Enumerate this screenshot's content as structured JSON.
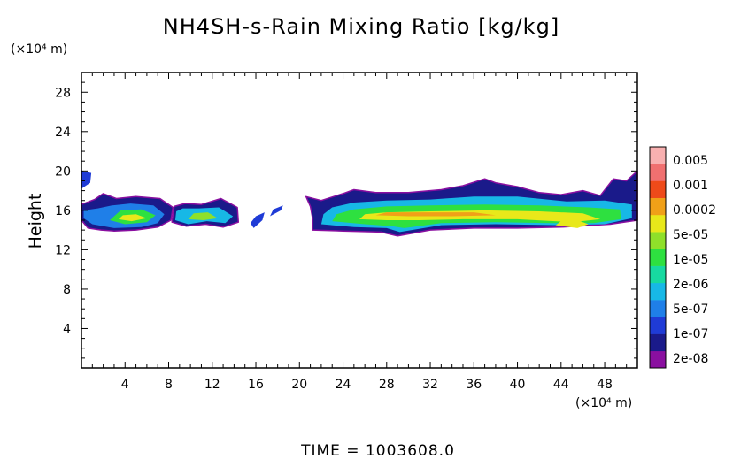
{
  "chart_data": {
    "type": "contour",
    "title": "NH4SH-s-Rain Mixing Ratio [kg/kg]",
    "ylabel": "Height",
    "y_unit": "(×10⁴ m)",
    "x_unit": "(×10⁴ m)",
    "footer": "TIME = 1003608.0",
    "xlim": [
      0,
      51
    ],
    "ylim": [
      0,
      30
    ],
    "x_ticks": [
      "4",
      "8",
      "12",
      "16",
      "20",
      "24",
      "28",
      "32",
      "36",
      "40",
      "44",
      "48"
    ],
    "y_ticks": [
      "4",
      "8",
      "12",
      "16",
      "20",
      "24",
      "28"
    ],
    "colorbar": {
      "labels": [
        "2e-08",
        "1e-07",
        "5e-07",
        "2e-06",
        "1e-05",
        "5e-05",
        "0.0002",
        "0.001",
        "0.005"
      ],
      "colors": [
        "#8a0fa0",
        "#1a1a8a",
        "#1f3bd6",
        "#1f7fe8",
        "#17b8e6",
        "#17d9a0",
        "#2ee040",
        "#8fe02a",
        "#e8e81a",
        "#f0a018",
        "#ee4a1a",
        "#f07070",
        "#f8b0b0"
      ]
    },
    "regions": [
      {
        "xy": [
          [
            0.0,
            15.0
          ],
          [
            0.6,
            14.2
          ],
          [
            1.8,
            14.0
          ],
          [
            3.0,
            13.9
          ],
          [
            5.0,
            14.0
          ],
          [
            7.0,
            14.3
          ],
          [
            8.2,
            15.0
          ],
          [
            8.4,
            16.3
          ],
          [
            7.2,
            17.2
          ],
          [
            5.0,
            17.4
          ],
          [
            3.2,
            17.2
          ],
          [
            2.0,
            17.7
          ],
          [
            1.2,
            17.1
          ],
          [
            0.0,
            16.6
          ]
        ],
        "level": 1
      },
      {
        "xy": [
          [
            0.2,
            15.2
          ],
          [
            1.0,
            14.6
          ],
          [
            3.0,
            14.2
          ],
          [
            5.5,
            14.3
          ],
          [
            7.0,
            14.7
          ],
          [
            7.6,
            15.6
          ],
          [
            6.6,
            16.5
          ],
          [
            4.5,
            16.7
          ],
          [
            2.8,
            16.5
          ],
          [
            1.5,
            16.2
          ],
          [
            0.2,
            16.0
          ]
        ],
        "level": 3
      },
      {
        "xy": [
          [
            2.6,
            15.0
          ],
          [
            4.0,
            14.6
          ],
          [
            6.0,
            14.8
          ],
          [
            6.8,
            15.5
          ],
          [
            5.5,
            16.1
          ],
          [
            3.6,
            16.0
          ]
        ],
        "level": 6
      },
      {
        "xy": [
          [
            3.4,
            15.1
          ],
          [
            4.6,
            14.9
          ],
          [
            6.0,
            15.2
          ],
          [
            5.0,
            15.6
          ],
          [
            3.8,
            15.5
          ]
        ],
        "level": 8
      },
      {
        "xy": [
          [
            0.0,
            18.2
          ],
          [
            0.8,
            18.8
          ],
          [
            0.9,
            19.8
          ],
          [
            0.0,
            20.0
          ]
        ],
        "level": 2
      },
      {
        "xy": [
          [
            8.3,
            14.8
          ],
          [
            9.6,
            14.4
          ],
          [
            11.4,
            14.6
          ],
          [
            13.0,
            14.3
          ],
          [
            14.4,
            14.8
          ],
          [
            14.3,
            16.3
          ],
          [
            12.8,
            17.2
          ],
          [
            11.0,
            16.6
          ],
          [
            9.5,
            16.7
          ],
          [
            8.5,
            16.4
          ]
        ],
        "level": 1
      },
      {
        "xy": [
          [
            8.6,
            15.0
          ],
          [
            9.8,
            14.6
          ],
          [
            11.5,
            14.9
          ],
          [
            13.2,
            14.7
          ],
          [
            13.9,
            15.4
          ],
          [
            12.6,
            16.3
          ],
          [
            10.8,
            16.2
          ],
          [
            9.3,
            16.2
          ],
          [
            8.7,
            15.9
          ]
        ],
        "level": 4
      },
      {
        "xy": [
          [
            9.8,
            15.1
          ],
          [
            11.2,
            15.0
          ],
          [
            12.5,
            15.2
          ],
          [
            11.6,
            15.8
          ],
          [
            10.3,
            15.7
          ]
        ],
        "level": 7
      },
      {
        "xy": [
          [
            15.8,
            14.2
          ],
          [
            16.6,
            15.0
          ],
          [
            16.8,
            15.8
          ],
          [
            16.0,
            15.4
          ],
          [
            15.5,
            14.7
          ]
        ],
        "level": 2
      },
      {
        "xy": [
          [
            17.3,
            15.4
          ],
          [
            18.3,
            16.0
          ],
          [
            18.5,
            16.5
          ],
          [
            17.6,
            16.1
          ]
        ],
        "level": 2
      },
      {
        "xy": [
          [
            21.2,
            14.0
          ],
          [
            24.0,
            13.9
          ],
          [
            27.5,
            13.8
          ],
          [
            29.0,
            13.4
          ],
          [
            32.0,
            14.0
          ],
          [
            36.0,
            14.2
          ],
          [
            40.0,
            14.2
          ],
          [
            44.0,
            14.3
          ],
          [
            48.5,
            14.6
          ],
          [
            51.0,
            15.0
          ],
          [
            51.0,
            20.0
          ],
          [
            50.0,
            19.0
          ],
          [
            48.8,
            19.2
          ],
          [
            47.6,
            17.5
          ],
          [
            46.0,
            18.0
          ],
          [
            44.0,
            17.6
          ],
          [
            42.0,
            17.8
          ],
          [
            40.0,
            18.4
          ],
          [
            38.0,
            18.8
          ],
          [
            37.0,
            19.2
          ],
          [
            35.0,
            18.5
          ],
          [
            33.0,
            18.1
          ],
          [
            30.0,
            17.8
          ],
          [
            27.0,
            17.8
          ],
          [
            25.0,
            18.1
          ],
          [
            24.0,
            17.7
          ],
          [
            22.0,
            17.0
          ],
          [
            20.6,
            17.4
          ],
          [
            21.0,
            16.4
          ],
          [
            21.2,
            15.2
          ]
        ],
        "level": 1
      },
      {
        "xy": [
          [
            22.0,
            14.6
          ],
          [
            25.0,
            14.3
          ],
          [
            28.0,
            14.2
          ],
          [
            29.2,
            13.8
          ],
          [
            33.0,
            14.5
          ],
          [
            38.0,
            14.6
          ],
          [
            44.0,
            14.5
          ],
          [
            48.0,
            14.6
          ],
          [
            50.5,
            15.2
          ],
          [
            50.5,
            16.6
          ],
          [
            48.0,
            17.0
          ],
          [
            44.5,
            16.9
          ],
          [
            40.0,
            17.4
          ],
          [
            36.0,
            17.4
          ],
          [
            32.0,
            17.1
          ],
          [
            28.0,
            17.0
          ],
          [
            25.0,
            16.8
          ],
          [
            23.0,
            16.3
          ],
          [
            22.2,
            15.6
          ]
        ],
        "level": 4
      },
      {
        "xy": [
          [
            23.0,
            14.9
          ],
          [
            26.0,
            14.6
          ],
          [
            28.5,
            14.4
          ],
          [
            29.6,
            14.2
          ],
          [
            33.0,
            14.7
          ],
          [
            38.0,
            14.8
          ],
          [
            43.0,
            14.7
          ],
          [
            47.0,
            14.7
          ],
          [
            49.5,
            15.1
          ],
          [
            49.4,
            16.1
          ],
          [
            46.5,
            16.3
          ],
          [
            42.0,
            16.5
          ],
          [
            37.0,
            16.6
          ],
          [
            32.0,
            16.5
          ],
          [
            28.0,
            16.4
          ],
          [
            25.0,
            16.1
          ],
          [
            23.4,
            15.6
          ]
        ],
        "level": 6
      },
      {
        "xy": [
          [
            25.5,
            15.1
          ],
          [
            28.0,
            15.0
          ],
          [
            31.0,
            15.0
          ],
          [
            35.0,
            15.1
          ],
          [
            40.0,
            15.1
          ],
          [
            45.0,
            14.8
          ],
          [
            47.6,
            15.1
          ],
          [
            46.0,
            15.7
          ],
          [
            42.0,
            15.9
          ],
          [
            37.0,
            16.0
          ],
          [
            32.0,
            15.9
          ],
          [
            28.0,
            15.8
          ],
          [
            26.0,
            15.6
          ]
        ],
        "level": 8
      },
      {
        "xy": [
          [
            27.0,
            15.5
          ],
          [
            30.0,
            15.4
          ],
          [
            34.0,
            15.4
          ],
          [
            38.0,
            15.5
          ],
          [
            36.0,
            15.8
          ],
          [
            31.0,
            15.8
          ],
          [
            28.0,
            15.8
          ]
        ],
        "level": 9
      },
      {
        "xy": [
          [
            43.5,
            14.5
          ],
          [
            45.5,
            14.2
          ],
          [
            46.5,
            14.6
          ],
          [
            45.5,
            15.0
          ],
          [
            44.0,
            14.9
          ]
        ],
        "level": 8
      }
    ]
  }
}
